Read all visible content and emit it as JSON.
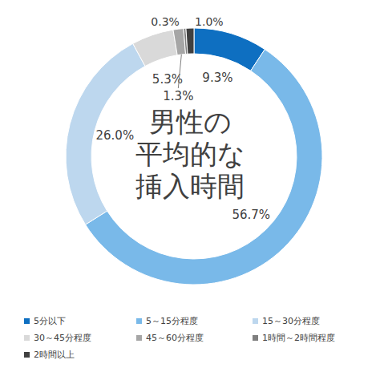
{
  "chart_data": {
    "type": "pie",
    "title": "男性の\n平均的な\n挿入時間",
    "categories": [
      "5分以下",
      "5～15分程度",
      "15～30分程度",
      "30～45分程度",
      "45～60分程度",
      "1時間～2時間程度",
      "2時間以上"
    ],
    "values": [
      9.3,
      56.7,
      26.0,
      5.3,
      1.3,
      0.3,
      1.0
    ],
    "value_labels": [
      "9.3%",
      "56.7%",
      "26.0%",
      "5.3%",
      "1.3%",
      "0.3%",
      "1.0%"
    ],
    "colors": [
      "#0e6fc1",
      "#79b9e9",
      "#bdd7ee",
      "#d9d9d9",
      "#a6a6a6",
      "#7f7f7f",
      "#404040"
    ],
    "data_labels": true,
    "legend": "bottom"
  }
}
